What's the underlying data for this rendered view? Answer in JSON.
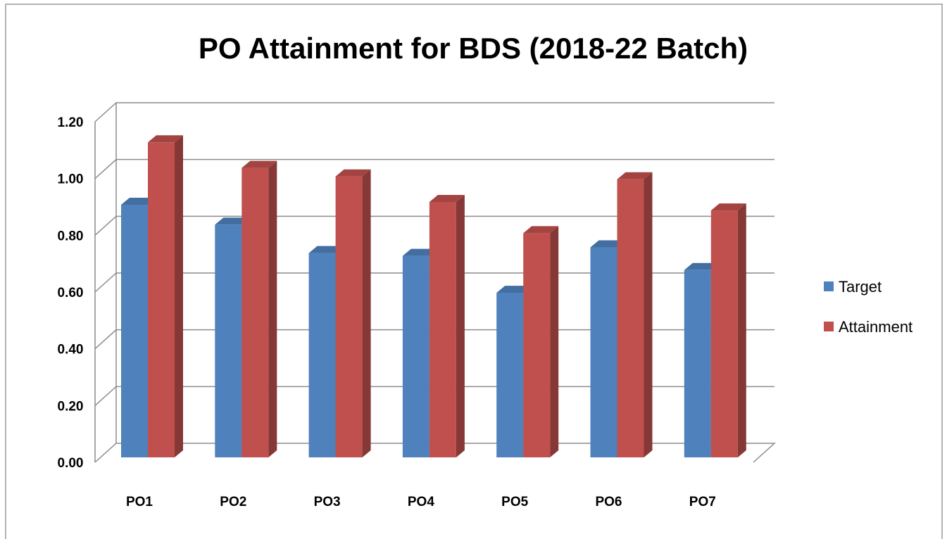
{
  "chart_data": {
    "type": "bar3d",
    "title": "PO Attainment for BDS (2018-22 Batch)",
    "categories": [
      "PO1",
      "PO2",
      "PO3",
      "PO4",
      "PO5",
      "PO6",
      "PO7"
    ],
    "series": [
      {
        "name": "Target",
        "color": "#4f81bd",
        "values": [
          0.89,
          0.82,
          0.72,
          0.71,
          0.58,
          0.74,
          0.66
        ]
      },
      {
        "name": "Attainment",
        "color": "#c0504d",
        "values": [
          1.11,
          1.02,
          0.99,
          0.9,
          0.79,
          0.98,
          0.87
        ]
      }
    ],
    "ylim": [
      0,
      1.2
    ],
    "yticks": [
      {
        "value": 0,
        "label": "0.00"
      },
      {
        "value": 0.2,
        "label": "0.20"
      },
      {
        "value": 0.4,
        "label": "0.40"
      },
      {
        "value": 0.6,
        "label": "0.60"
      },
      {
        "value": 0.8,
        "label": "0.80"
      },
      {
        "value": 1.0,
        "label": "1.00"
      },
      {
        "value": 1.2,
        "label": "1.20"
      }
    ],
    "grid": true,
    "legend": "right"
  }
}
